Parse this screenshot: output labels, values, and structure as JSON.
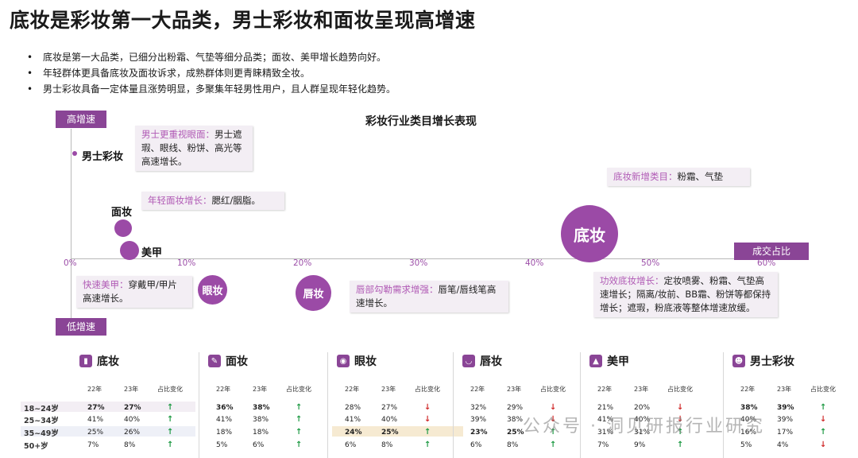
{
  "title": "底妆是彩妆第一大品类，男士彩妆和面妆呈现高增速",
  "bullets": [
    "底妆是第一大品类，已细分出粉霜、气垫等细分品类；面妆、美甲增长趋势向好。",
    "年轻群体更具备底妆及面妆诉求，成熟群体则更青睐精致全妆。",
    "男士彩妆具备一定体量且涨势明显，多聚集年轻男性用户，且人群呈现年轻化趋势。"
  ],
  "chart": {
    "title": "彩妆行业类目增长表现",
    "high_tag": "高增速",
    "low_tag": "低增速",
    "x_tag": "成交占比",
    "ticks": [
      "0%",
      "10%",
      "20%",
      "30%",
      "40%",
      "50%",
      "60%"
    ],
    "bubbles": {
      "men": "男士彩妆",
      "face": "面妆",
      "nail": "美甲",
      "eye": "眼妆",
      "lip": "唇妆",
      "base": "底妆"
    },
    "notes": {
      "men_hl": "男士更重视眼面：",
      "men_txt": "男士遮瑕、眼线、粉饼、高光等高速增长。",
      "face_hl": "年轻面妆增长：",
      "face_txt": "腮红/胭脂。",
      "base_hl": "底妆新增类目：",
      "base_txt": "粉霜、气垫",
      "nail_hl": "快速美甲：",
      "nail_txt": "穿戴甲/甲片高速增长。",
      "lip_hl": "唇部勾勒需求增强：",
      "lip_txt": "唇笔/唇线笔高速增长。",
      "func_hl": "功效底妆增长：",
      "func_txt": "定妆喷雾、粉霜、气垫高速增长；隔离/妆前、BB霜、粉饼等都保持增长；遮瑕，粉底液等整体增速放缓。"
    }
  },
  "chart_data": {
    "type": "scatter",
    "title": "彩妆行业类目增长表现",
    "xlabel": "成交占比",
    "ylabel": "",
    "x_ticks": [
      "0%",
      "10%",
      "20%",
      "30%",
      "40%",
      "50%",
      "60%"
    ],
    "xlim": [
      0,
      60
    ],
    "y_labels": [
      "低增速",
      "高增速"
    ],
    "points": [
      {
        "name": "男士彩妆",
        "x": 0.5
      },
      {
        "name": "面妆",
        "x": 4.5
      },
      {
        "name": "美甲",
        "x": 5
      },
      {
        "name": "底妆",
        "x": 45
      },
      {
        "name": "眼妆",
        "x": 12.5
      },
      {
        "name": "唇妆",
        "x": 21
      }
    ]
  },
  "table": {
    "col_headers": [
      "22年",
      "23年",
      "占比变化"
    ],
    "ages": [
      "18~24岁",
      "25~34岁",
      "35~49岁",
      "50+岁"
    ],
    "panels": [
      {
        "name": "底妆",
        "icon": "lotion-icon",
        "rows": [
          [
            "27%",
            "27%",
            "up"
          ],
          [
            "41%",
            "40%",
            "up"
          ],
          [
            "25%",
            "26%",
            "up"
          ],
          [
            "7%",
            "8%",
            "up"
          ]
        ]
      },
      {
        "name": "面妆",
        "icon": "brush-icon",
        "rows": [
          [
            "36%",
            "38%",
            "up"
          ],
          [
            "41%",
            "38%",
            "up"
          ],
          [
            "18%",
            "18%",
            "up"
          ],
          [
            "5%",
            "6%",
            "up"
          ]
        ]
      },
      {
        "name": "眼妆",
        "icon": "eye-icon",
        "rows": [
          [
            "28%",
            "27%",
            "down"
          ],
          [
            "41%",
            "40%",
            "down"
          ],
          [
            "24%",
            "25%",
            "up"
          ],
          [
            "6%",
            "8%",
            "up"
          ]
        ]
      },
      {
        "name": "唇妆",
        "icon": "lips-icon",
        "rows": [
          [
            "32%",
            "29%",
            "down"
          ],
          [
            "39%",
            "38%",
            "down"
          ],
          [
            "23%",
            "25%",
            "up"
          ],
          [
            "6%",
            "8%",
            "up"
          ]
        ]
      },
      {
        "name": "美甲",
        "icon": "nail-polish-icon",
        "rows": [
          [
            "21%",
            "20%",
            "down"
          ],
          [
            "41%",
            "40%",
            "down"
          ],
          [
            "31%",
            "31%",
            "up"
          ],
          [
            "7%",
            "9%",
            "up"
          ]
        ]
      },
      {
        "name": "男士彩妆",
        "icon": "man-icon",
        "rows": [
          [
            "38%",
            "39%",
            "up"
          ],
          [
            "40%",
            "39%",
            "down"
          ],
          [
            "16%",
            "17%",
            "up"
          ],
          [
            "5%",
            "4%",
            "down"
          ]
        ]
      }
    ]
  },
  "watermark": "公众号 · 洞见研报行业研究"
}
